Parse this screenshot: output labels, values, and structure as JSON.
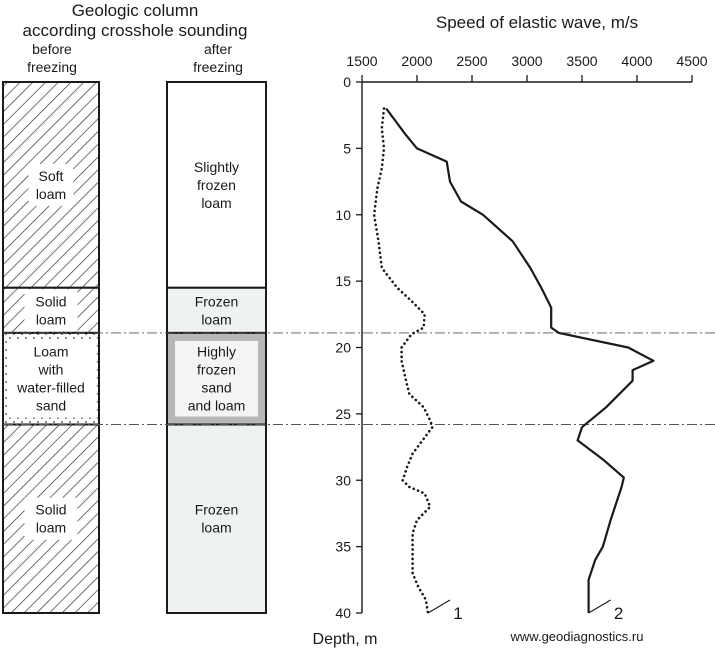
{
  "geologic": {
    "title_line1": "Geologic column",
    "title_line2": "according crosshole sounding",
    "before_label_line1": "before",
    "before_label_line2": "freezing",
    "after_label_line1": "after",
    "after_label_line2": "freezing",
    "before_layers": [
      {
        "top": 0,
        "bottom": 15.5,
        "fill": "hatch",
        "label": [
          "Soft",
          "loam"
        ]
      },
      {
        "top": 15.5,
        "bottom": 18.9,
        "fill": "hatch",
        "label": [
          "Solid",
          "loam"
        ]
      },
      {
        "top": 18.9,
        "bottom": 25.8,
        "fill": "dots",
        "label": [
          "Loam",
          "with",
          "water-filled",
          "sand"
        ]
      },
      {
        "top": 25.8,
        "bottom": 40,
        "fill": "hatch",
        "label": [
          "Solid",
          "loam"
        ]
      }
    ],
    "after_layers": [
      {
        "top": 0,
        "bottom": 15.5,
        "fill": "#ffffff",
        "label": [
          "Slightly",
          "frozen",
          "loam"
        ]
      },
      {
        "top": 15.5,
        "bottom": 18.9,
        "fill": "#eef2f2",
        "label": [
          "Frozen",
          "loam"
        ]
      },
      {
        "top": 18.9,
        "bottom": 25.8,
        "fill": "#b7b7b7",
        "label": [
          "Highly",
          "frozen",
          "sand",
          "and loam"
        ]
      },
      {
        "top": 25.8,
        "bottom": 40,
        "fill": "#eef2f2",
        "label": [
          "Frozen",
          "loam"
        ]
      }
    ]
  },
  "chart_data": {
    "type": "line",
    "title": "Speed of elastic wave, m/s",
    "xlabel": "Speed of elastic wave, m/s",
    "ylabel": "Depth, m",
    "xlim": [
      1500,
      4500
    ],
    "ylim": [
      0,
      40
    ],
    "x_ticks": [
      1500,
      2000,
      2500,
      3000,
      3500,
      4000,
      4500
    ],
    "y_ticks": [
      0,
      5,
      10,
      15,
      20,
      25,
      30,
      35,
      40
    ],
    "y_inverted": true,
    "x_axis_position": "top",
    "reference_lines_depth": [
      18.9,
      25.8
    ],
    "series": [
      {
        "name": "1",
        "style": "dotted",
        "points": [
          [
            1700,
            2.0
          ],
          [
            1680,
            3.5
          ],
          [
            1700,
            5.0
          ],
          [
            1680,
            6.5
          ],
          [
            1640,
            8.0
          ],
          [
            1610,
            10.0
          ],
          [
            1650,
            12.0
          ],
          [
            1680,
            14.0
          ],
          [
            1820,
            15.5
          ],
          [
            1950,
            16.5
          ],
          [
            2070,
            17.5
          ],
          [
            2060,
            18.5
          ],
          [
            1950,
            19.0
          ],
          [
            1860,
            20.0
          ],
          [
            1860,
            21.0
          ],
          [
            1900,
            22.5
          ],
          [
            1930,
            23.5
          ],
          [
            2060,
            24.5
          ],
          [
            2120,
            25.5
          ],
          [
            2140,
            26.0
          ],
          [
            2050,
            27.0
          ],
          [
            1960,
            28.0
          ],
          [
            1910,
            29.0
          ],
          [
            1870,
            30.0
          ],
          [
            1930,
            30.5
          ],
          [
            2070,
            31.0
          ],
          [
            2120,
            32.0
          ],
          [
            2000,
            33.0
          ],
          [
            1960,
            34.0
          ],
          [
            1960,
            35.5
          ],
          [
            1960,
            37.0
          ],
          [
            2010,
            38.0
          ],
          [
            2080,
            39.0
          ],
          [
            2100,
            40.0
          ]
        ]
      },
      {
        "name": "2",
        "style": "solid",
        "points": [
          [
            1720,
            2.0
          ],
          [
            1900,
            4.0
          ],
          [
            2000,
            5.0
          ],
          [
            2270,
            6.0
          ],
          [
            2300,
            7.5
          ],
          [
            2400,
            9.0
          ],
          [
            2600,
            10.0
          ],
          [
            2870,
            12.0
          ],
          [
            3030,
            14.0
          ],
          [
            3130,
            15.5
          ],
          [
            3190,
            16.5
          ],
          [
            3220,
            17.0
          ],
          [
            3220,
            18.5
          ],
          [
            3290,
            18.9
          ],
          [
            3920,
            20.0
          ],
          [
            4150,
            21.0
          ],
          [
            3960,
            21.7
          ],
          [
            3960,
            22.5
          ],
          [
            3720,
            24.5
          ],
          [
            3500,
            26.0
          ],
          [
            3460,
            27.0
          ],
          [
            3700,
            28.5
          ],
          [
            3880,
            29.8
          ],
          [
            3860,
            30.5
          ],
          [
            3760,
            33.0
          ],
          [
            3690,
            35.0
          ],
          [
            3620,
            36.0
          ],
          [
            3560,
            37.5
          ],
          [
            3560,
            39.0
          ],
          [
            3560,
            40.0
          ]
        ]
      }
    ]
  },
  "footer": {
    "website": "www.geodiagnostics.ru"
  }
}
